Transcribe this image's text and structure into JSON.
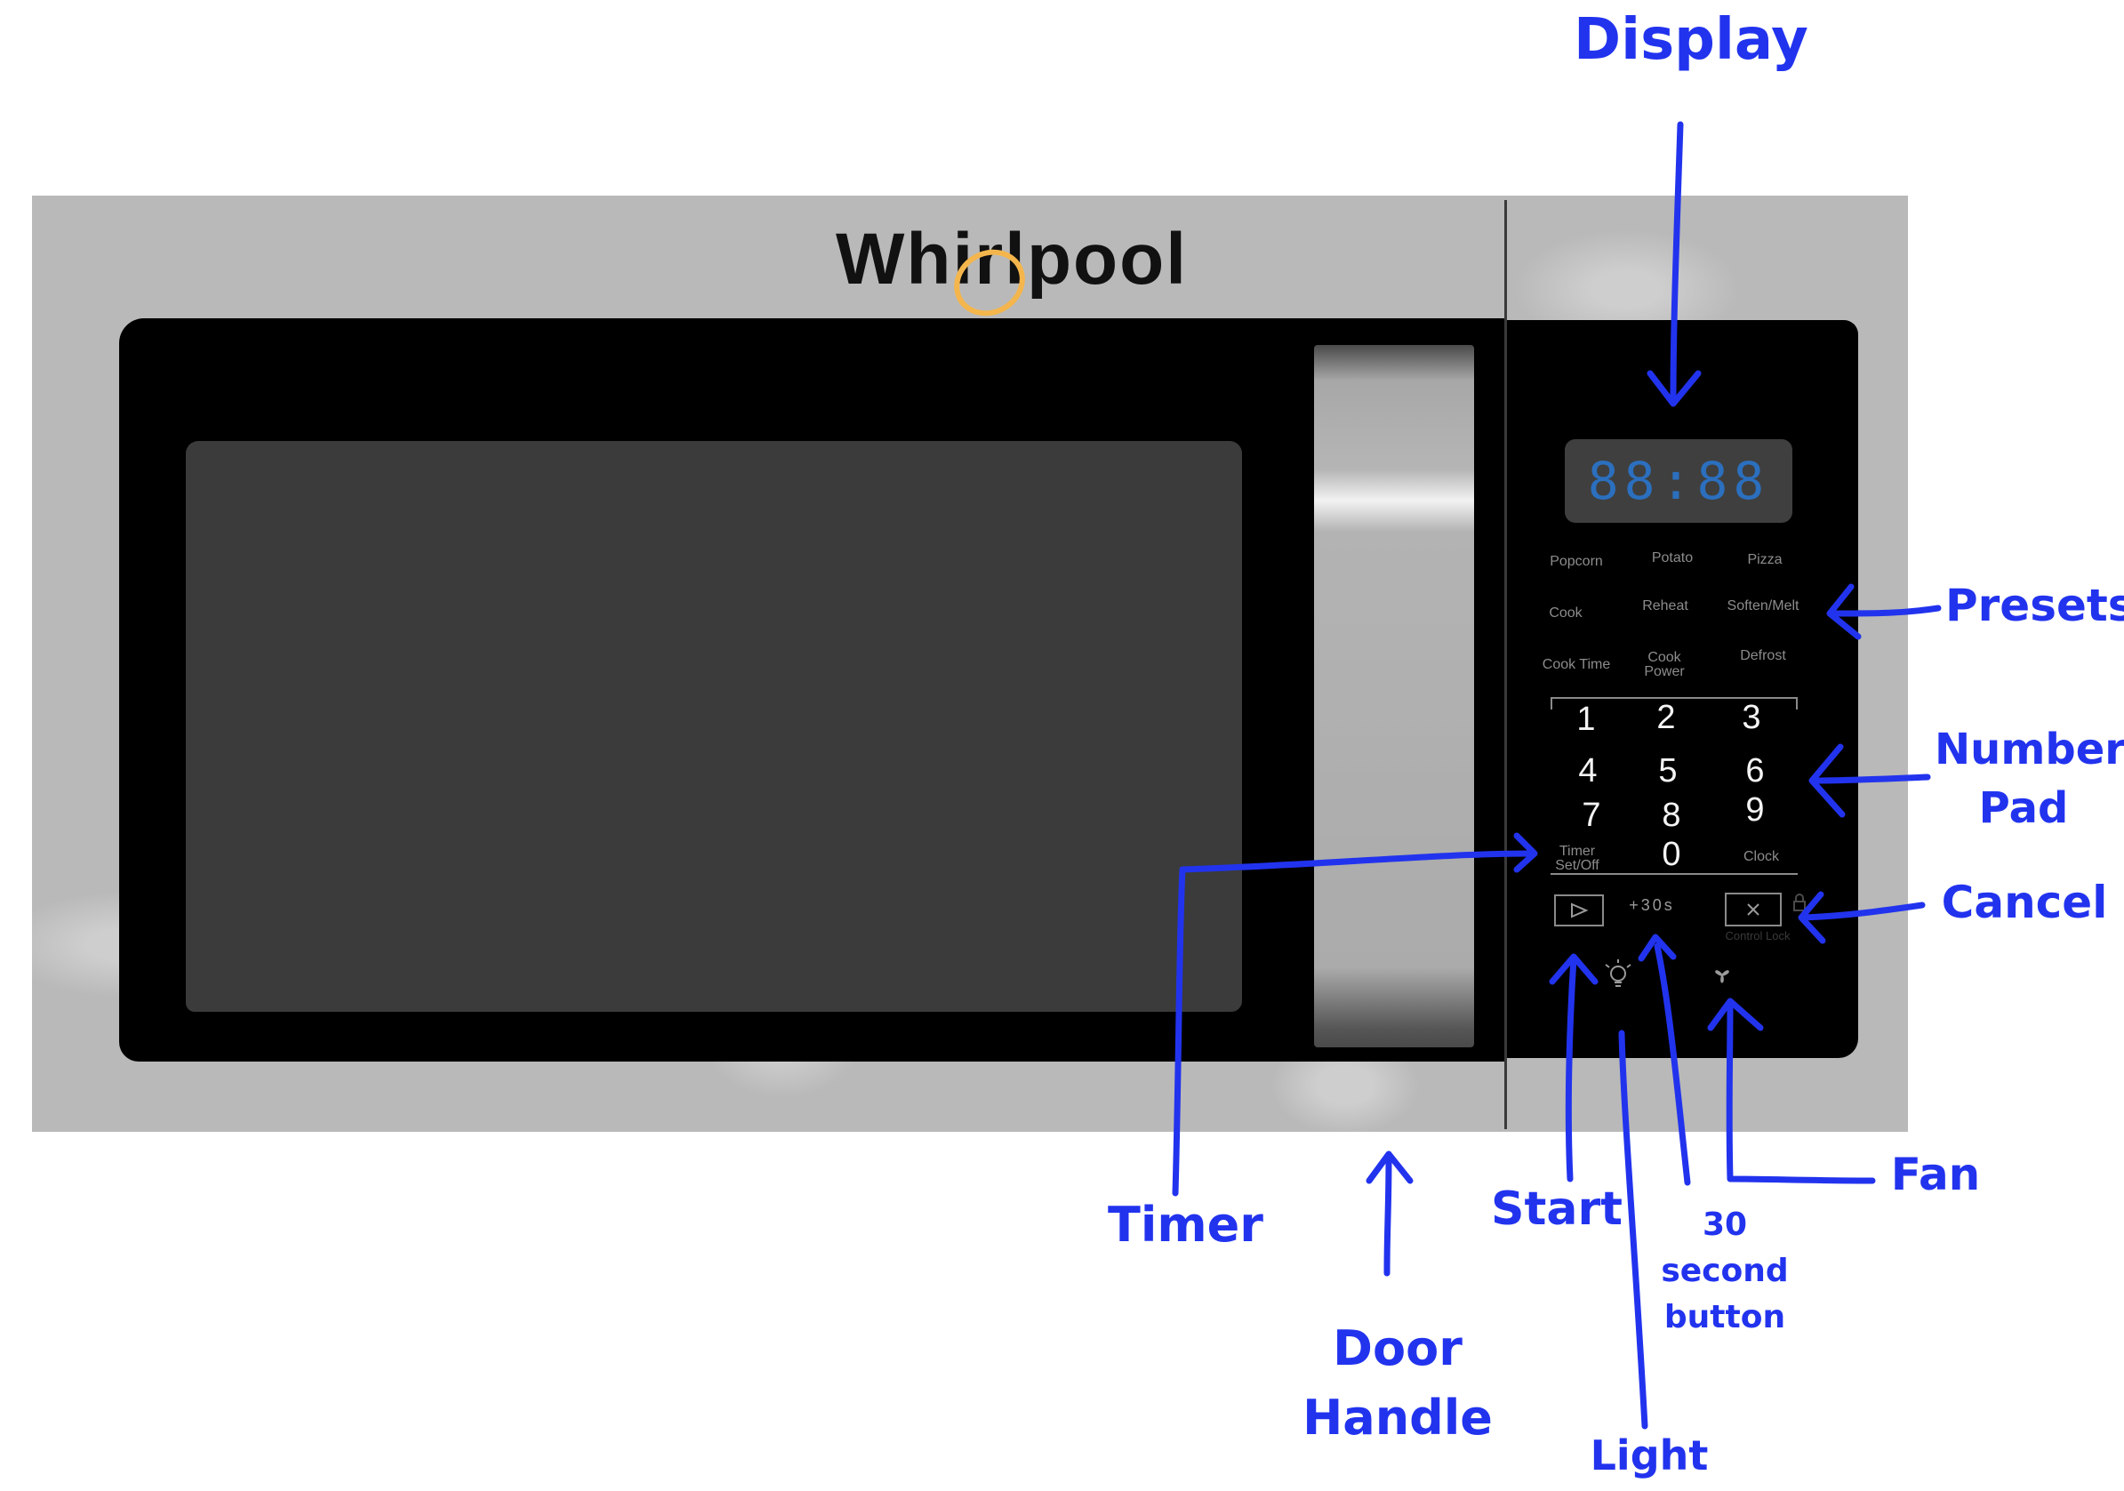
{
  "brand": {
    "logo_text": "Whirlpool"
  },
  "display": {
    "readout": "88:88"
  },
  "presets": [
    {
      "id": "popcorn",
      "label": "Popcorn"
    },
    {
      "id": "potato",
      "label": "Potato"
    },
    {
      "id": "pizza",
      "label": "Pizza"
    },
    {
      "id": "cook",
      "label": "Cook"
    },
    {
      "id": "reheat",
      "label": "Reheat"
    },
    {
      "id": "soften-melt",
      "label": "Soften/Melt"
    },
    {
      "id": "cook-time",
      "label": "Cook Time"
    },
    {
      "id": "cook-power",
      "label": "Cook Power"
    },
    {
      "id": "defrost",
      "label": "Defrost"
    }
  ],
  "keypad": {
    "digits": [
      "1",
      "2",
      "3",
      "4",
      "5",
      "6",
      "7",
      "8",
      "9",
      "0"
    ],
    "timer_label": "Timer Set/Off",
    "clock_label": "Clock"
  },
  "controls": {
    "plus30": "+30s",
    "control_lock": "Control Lock",
    "start_icon": "play-icon",
    "cancel_icon": "x-icon",
    "light_icon": "lightbulb-icon",
    "fan_icon": "fan-icon",
    "lock_icon": "lock-icon"
  },
  "annotations": {
    "display": "Display",
    "presets": "Presets",
    "number_pad": "Number Pad",
    "cancel": "Cancel",
    "timer": "Timer",
    "door_handle": "Door Handle",
    "start": "Start",
    "thirty_second": "30 second button",
    "fan": "Fan",
    "light": "Light"
  },
  "colors": {
    "annotation": "#2233ee",
    "body": "#b9b9b9",
    "panel": "#000000",
    "window": "#3b3b3b",
    "display_digits": "#2b6fbe",
    "logo_accent": "#f4b64c"
  }
}
